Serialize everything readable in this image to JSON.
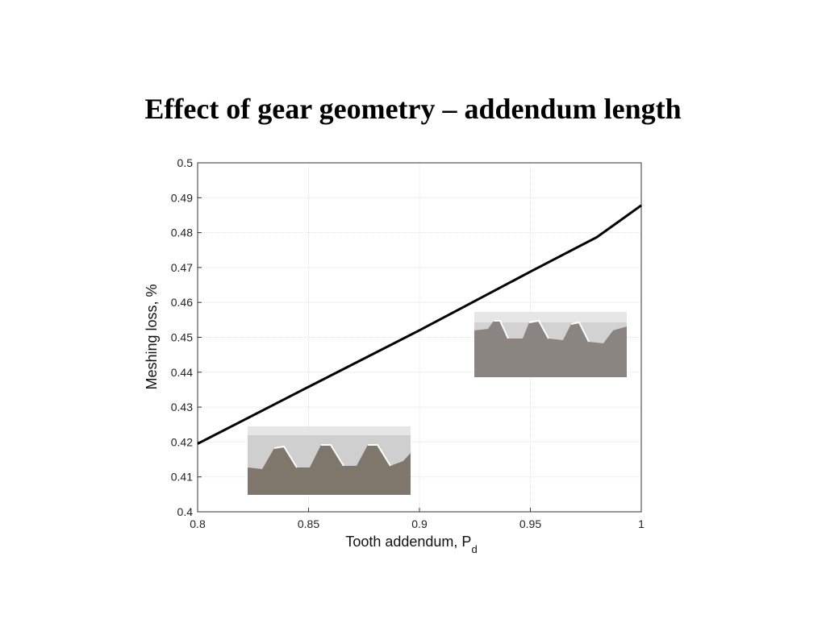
{
  "chart_data": {
    "type": "line",
    "title": "Effect of gear geometry – addendum length",
    "xlabel": {
      "text": "Tooth addendum, P",
      "subscript": "d"
    },
    "ylabel": "Meshing loss, %",
    "x": [
      0.8,
      0.85,
      0.9,
      0.95,
      0.98,
      1.0
    ],
    "series": [
      {
        "color": "#000000",
        "values": [
          0.4195,
          0.4358,
          0.452,
          0.4688,
          0.4787,
          0.4878
        ]
      }
    ],
    "xlim": [
      0.8,
      1.0
    ],
    "xticks": [
      0.8,
      0.85,
      0.9,
      0.95,
      1
    ],
    "ylim": [
      0.4,
      0.5
    ],
    "yticks": [
      0.4,
      0.41,
      0.42,
      0.43,
      0.44,
      0.45,
      0.46,
      0.47,
      0.48,
      0.49,
      0.5
    ],
    "grid": true
  }
}
